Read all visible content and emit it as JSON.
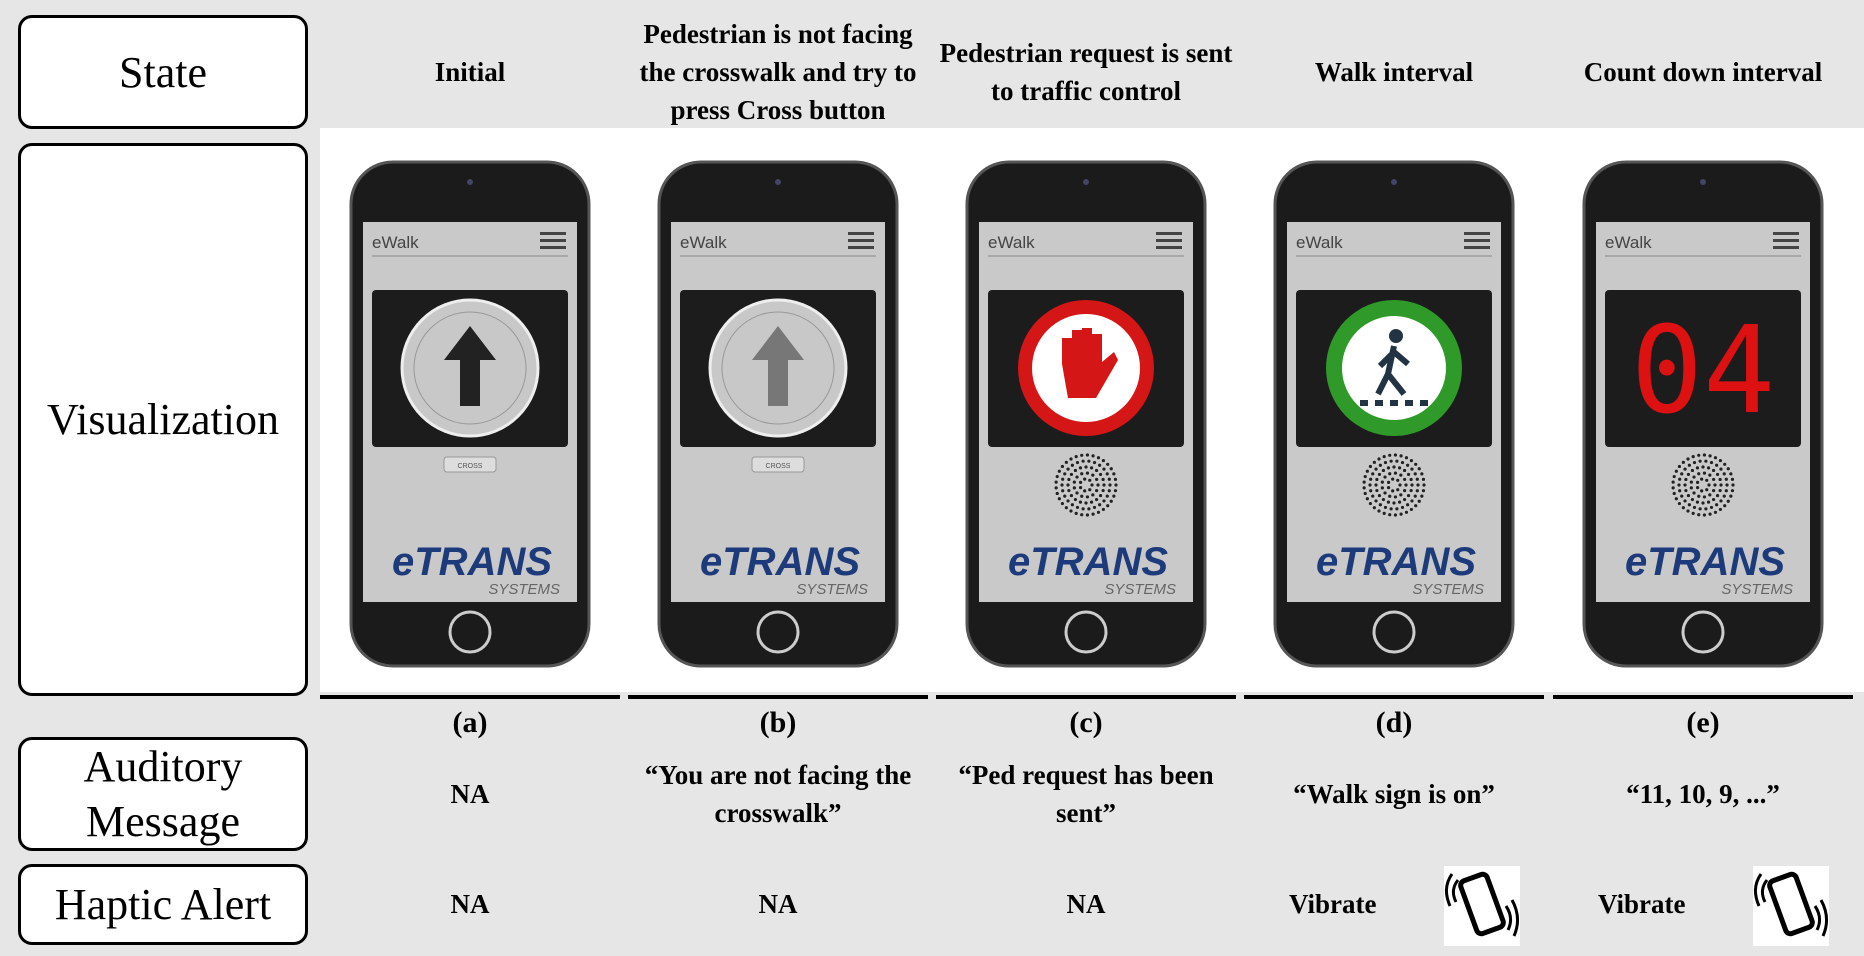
{
  "rows": {
    "state": "State",
    "visualization": "Visualization",
    "auditory": "Auditory Message",
    "haptic": "Haptic Alert"
  },
  "columns": [
    {
      "header": "Initial",
      "label": "(a)",
      "auditory": "NA",
      "haptic": "NA",
      "screen": {
        "app": "eWalk",
        "button": "CROSS",
        "logo": "eTRANS",
        "logo_sub": "SYSTEMS"
      }
    },
    {
      "header": "Pedestrian is not facing the crosswalk and try to press Cross button",
      "label": "(b)",
      "auditory": "“You are not facing the crosswalk”",
      "haptic": "NA",
      "screen": {
        "app": "eWalk",
        "button": "CROSS",
        "logo": "eTRANS",
        "logo_sub": "SYSTEMS"
      }
    },
    {
      "header": "Pedestrian request is sent to traffic control",
      "label": "(c)",
      "auditory": "“Ped request has been sent”",
      "haptic": "NA",
      "screen": {
        "app": "eWalk",
        "logo": "eTRANS",
        "logo_sub": "SYSTEMS"
      }
    },
    {
      "header": "Walk interval",
      "label": "(d)",
      "auditory": "“Walk sign is on”",
      "haptic": "Vibrate",
      "screen": {
        "app": "eWalk",
        "logo": "eTRANS",
        "logo_sub": "SYSTEMS"
      }
    },
    {
      "header": "Count down interval",
      "label": "(e)",
      "auditory": "“11, 10, 9, ...”",
      "haptic": "Vibrate",
      "screen": {
        "app": "eWalk",
        "countdown": "04",
        "logo": "eTRANS",
        "logo_sub": "SYSTEMS"
      }
    }
  ]
}
